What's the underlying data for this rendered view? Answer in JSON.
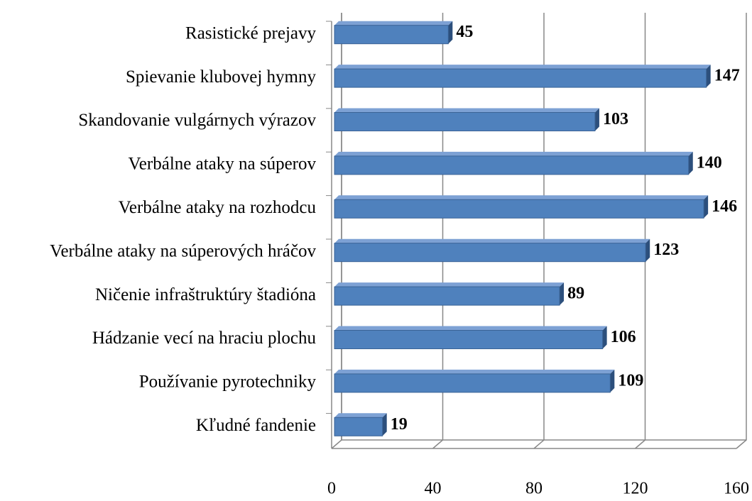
{
  "chart_data": {
    "type": "bar",
    "orientation": "horizontal",
    "categories": [
      "Rasistické prejavy",
      "Spievanie klubovej hymny",
      "Skandovanie vulgárnych výrazov",
      "Verbálne ataky na súperov",
      "Verbálne ataky na rozhodcu",
      "Verbálne ataky na súperových hráčov",
      "Ničenie infraštruktúry štadióna",
      "Hádzanie vecí na hraciu plochu",
      "Používanie pyrotechniky",
      "Kľudné fandenie"
    ],
    "values": [
      45,
      147,
      103,
      140,
      146,
      123,
      89,
      106,
      109,
      19
    ],
    "color": "#4f81bd",
    "xlim": [
      0,
      160
    ],
    "xticks": [
      0,
      40,
      80,
      120,
      160
    ],
    "grid": true
  }
}
